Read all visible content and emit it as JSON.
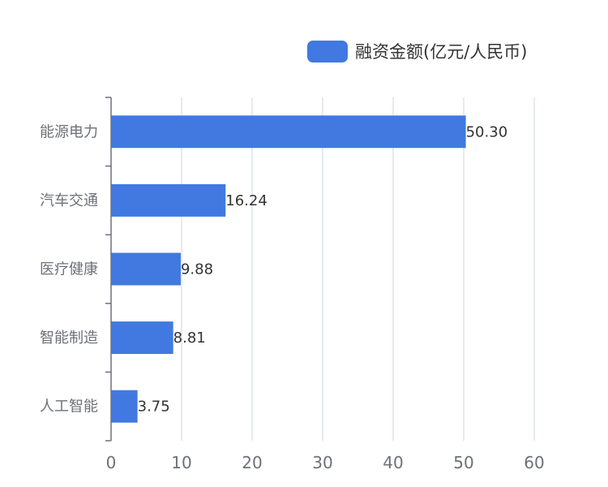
{
  "chart_data": {
    "type": "bar",
    "orientation": "horizontal",
    "categories": [
      "人工智能",
      "智能制造",
      "医疗健康",
      "汽车交通",
      "能源电力"
    ],
    "series": [
      {
        "name": "融资金额(亿元/人民币)",
        "values": [
          3.75,
          8.81,
          9.88,
          16.24,
          50.3
        ],
        "value_labels": [
          "3.75",
          "8.81",
          "9.88",
          "16.24",
          "50.30"
        ]
      }
    ],
    "xlim": [
      0,
      60
    ],
    "x_ticks": [
      0,
      10,
      20,
      30,
      40,
      50,
      60
    ],
    "grid": true,
    "legend_position": "top-right",
    "colors": {
      "bar": "#4179e0",
      "grid": "#dde3ef",
      "axis": "#6e7079",
      "label": "#333333"
    }
  }
}
